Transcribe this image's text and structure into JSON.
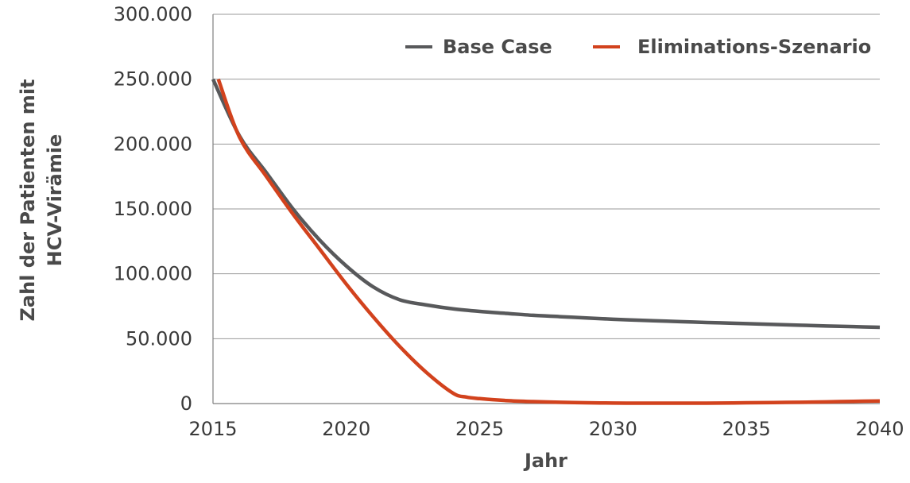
{
  "chart_data": {
    "type": "line",
    "xlabel": "Jahr",
    "ylabel_lines": [
      "Zahl der Patienten mit",
      "HCV-Virämie"
    ],
    "xlim": [
      2015,
      2040
    ],
    "ylim": [
      0,
      300000
    ],
    "x_ticks": [
      2015,
      2020,
      2025,
      2030,
      2035,
      2040
    ],
    "x_tick_labels": [
      "2015",
      "2020",
      "2025",
      "2030",
      "2035",
      "2040"
    ],
    "y_ticks": [
      0,
      50000,
      100000,
      150000,
      200000,
      250000,
      300000
    ],
    "y_tick_labels": [
      "0",
      "50.000",
      "100.000",
      "150.000",
      "200.000",
      "250.000",
      "300.000"
    ],
    "grid": "horizontal",
    "legend_position": "top-right",
    "series": [
      {
        "name": "Base Case",
        "color": "#58595b",
        "x": [
          2015,
          2016,
          2017,
          2018,
          2019,
          2020,
          2021,
          2022,
          2023,
          2024,
          2025,
          2026,
          2027,
          2028,
          2029,
          2030,
          2031,
          2032,
          2033,
          2034,
          2035,
          2036,
          2037,
          2038,
          2039,
          2040
        ],
        "values": [
          250000,
          206000,
          178000,
          150000,
          126000,
          106000,
          90000,
          80000,
          76000,
          73000,
          71000,
          69500,
          68000,
          67000,
          66000,
          65000,
          64200,
          63500,
          62800,
          62200,
          61600,
          61000,
          60400,
          59800,
          59300,
          58800
        ]
      },
      {
        "name": "Eliminations-Szenario",
        "color": "#d2421d",
        "x": [
          2015.2,
          2016,
          2017,
          2018,
          2019,
          2020,
          2021,
          2022,
          2023,
          2024,
          2024.5,
          2025,
          2026,
          2027,
          2028,
          2029,
          2030,
          2031,
          2032,
          2033,
          2034,
          2035,
          2036,
          2037,
          2038,
          2039,
          2040
        ],
        "values": [
          250000,
          205000,
          175000,
          146000,
          119000,
          92000,
          67000,
          44000,
          24000,
          8000,
          5000,
          3800,
          2300,
          1500,
          1000,
          600,
          400,
          300,
          300,
          300,
          400,
          600,
          800,
          1000,
          1300,
          1700,
          2000
        ]
      }
    ]
  }
}
